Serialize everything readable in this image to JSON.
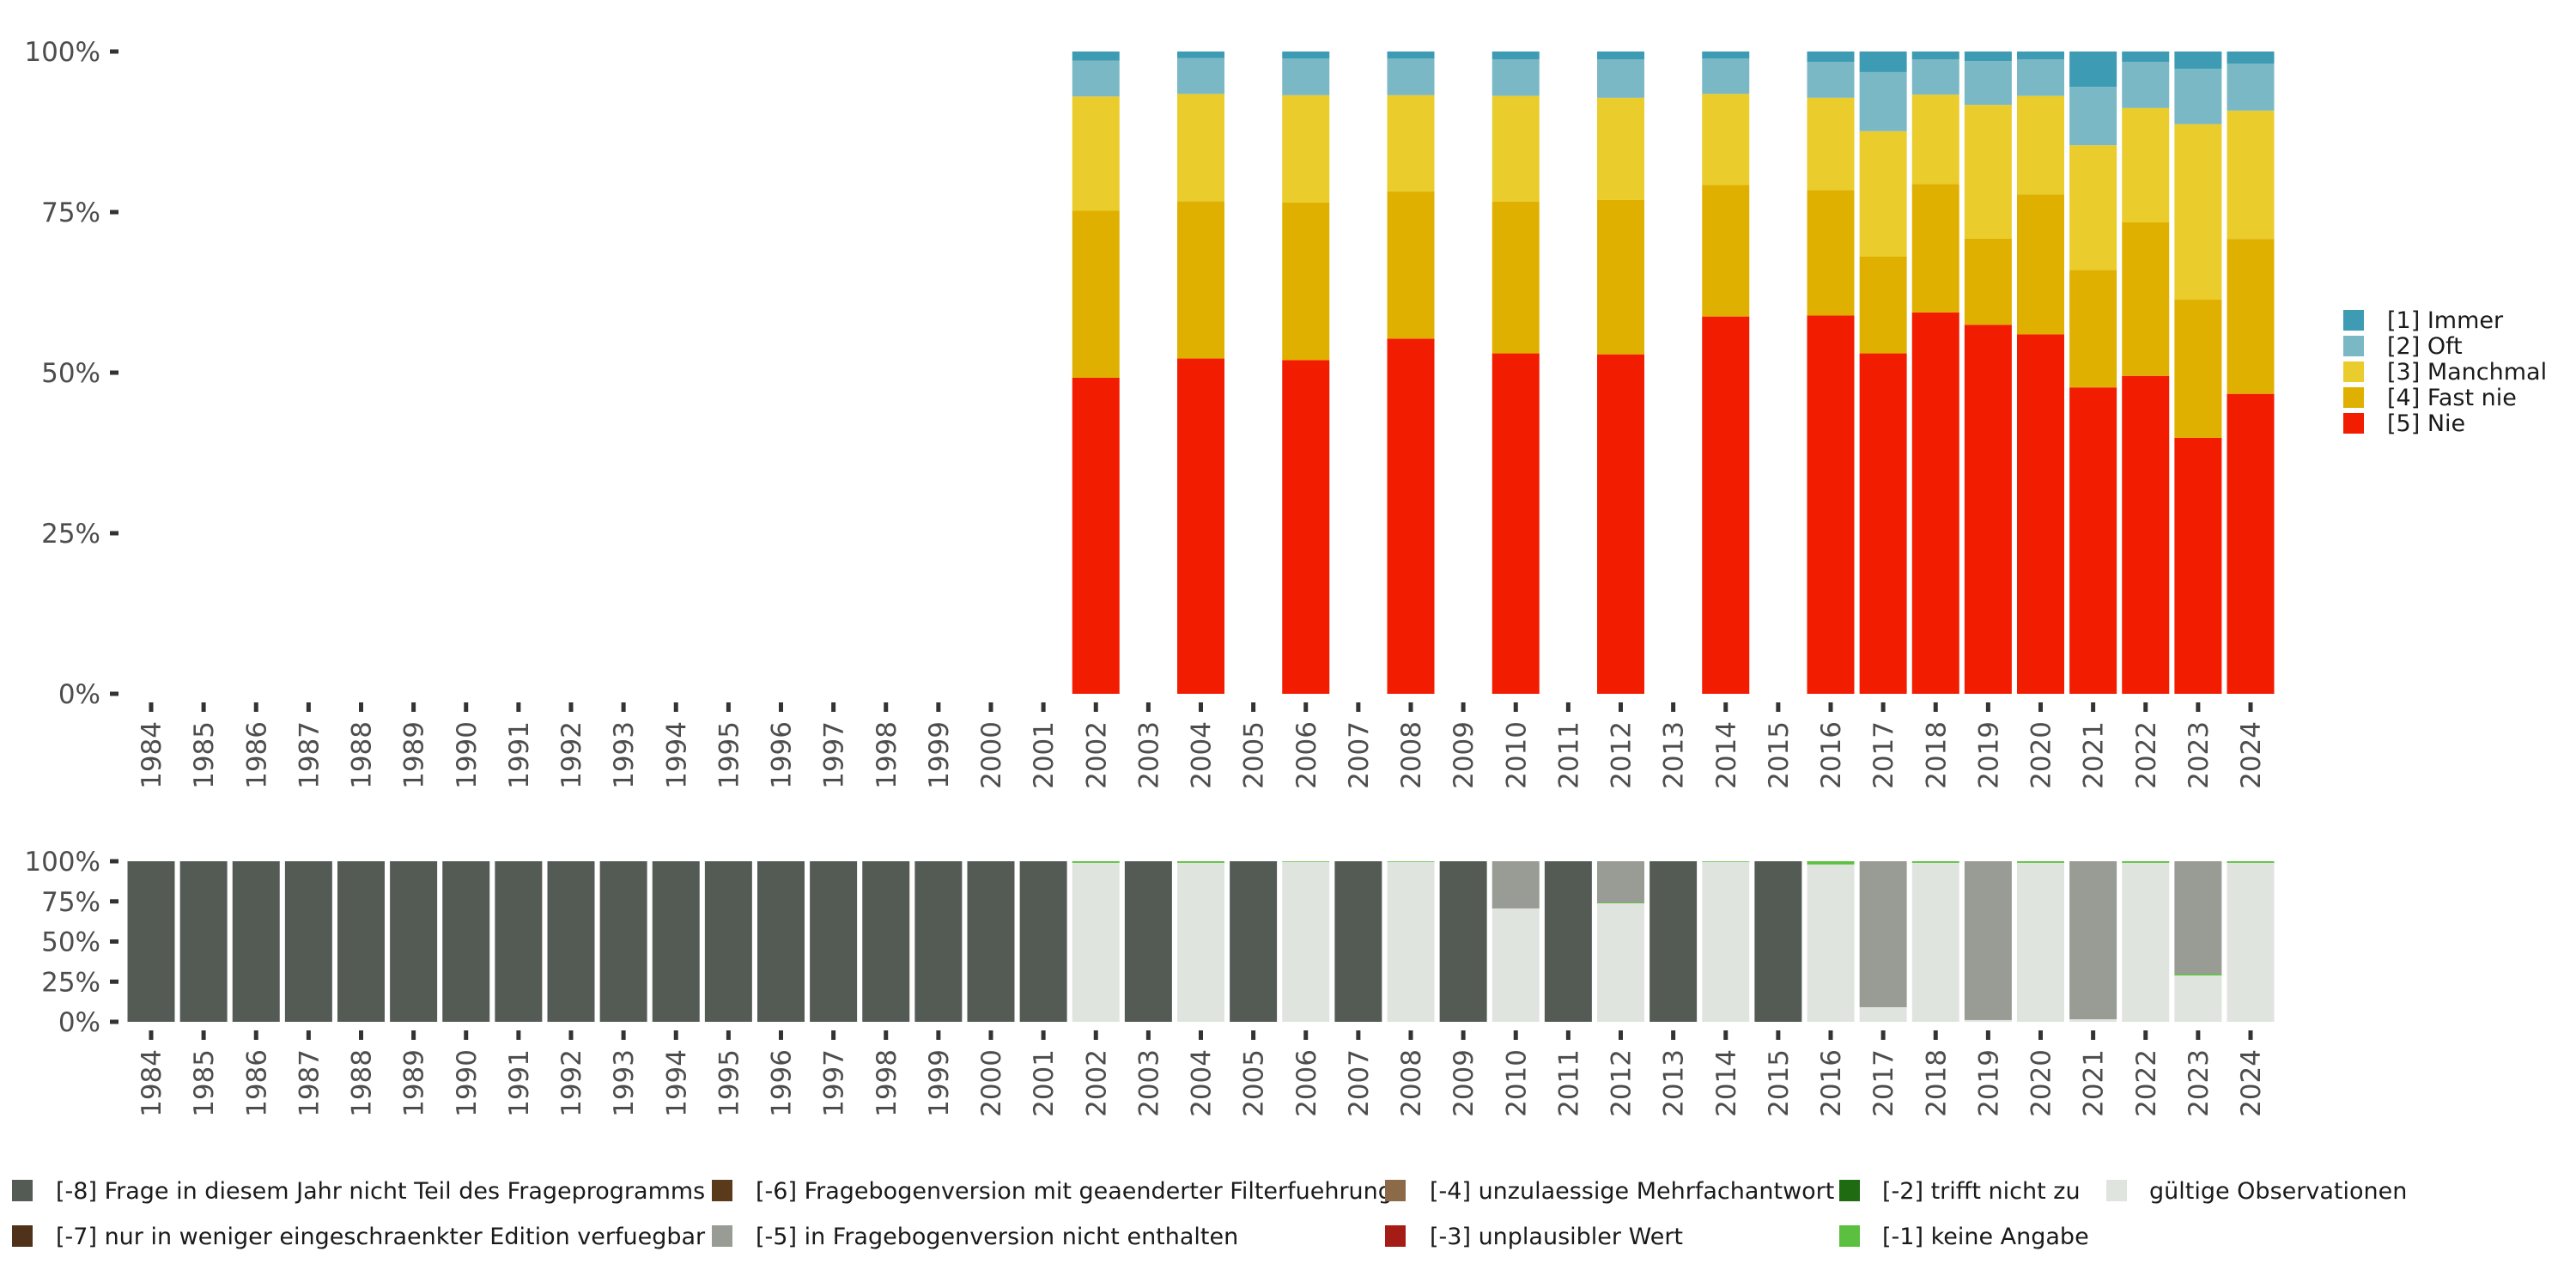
{
  "chart_data": [
    {
      "type": "bar",
      "stacked": true,
      "normalized": true,
      "title": "",
      "xlabel": "",
      "ylabel": "",
      "ylim": [
        0,
        1
      ],
      "yticks": [
        "0%",
        "25%",
        "50%",
        "75%",
        "100%"
      ],
      "grid": false,
      "legend_position": "right",
      "categories": [
        "1984",
        "1985",
        "1986",
        "1987",
        "1988",
        "1989",
        "1990",
        "1991",
        "1992",
        "1993",
        "1994",
        "1995",
        "1996",
        "1997",
        "1998",
        "1999",
        "2000",
        "2001",
        "2002",
        "2003",
        "2004",
        "2005",
        "2006",
        "2007",
        "2008",
        "2009",
        "2010",
        "2011",
        "2012",
        "2013",
        "2014",
        "2015",
        "2016",
        "2017",
        "2018",
        "2019",
        "2020",
        "2021",
        "2022",
        "2023",
        "2024"
      ],
      "stack_order_bottom_to_top": [
        "[5] Nie",
        "[4] Fast nie",
        "[3] Manchmal",
        "[2] Oft",
        "[1] Immer"
      ],
      "series": [
        {
          "name": "[1] Immer",
          "color": "#3d9bb3",
          "values": {
            "2002": 1.4,
            "2004": 1.0,
            "2006": 1.1,
            "2008": 1.1,
            "2010": 1.2,
            "2012": 1.2,
            "2014": 1.1,
            "2016": 1.6,
            "2017": 3.2,
            "2018": 1.2,
            "2019": 1.5,
            "2020": 1.2,
            "2021": 5.5,
            "2022": 1.6,
            "2023": 2.7,
            "2024": 1.9
          }
        },
        {
          "name": "[2] Oft",
          "color": "#7ab8c6",
          "values": {
            "2002": 5.6,
            "2004": 5.6,
            "2006": 5.7,
            "2008": 5.7,
            "2010": 5.7,
            "2012": 6.0,
            "2014": 5.5,
            "2016": 5.6,
            "2017": 9.2,
            "2018": 5.5,
            "2019": 6.8,
            "2020": 5.7,
            "2021": 9.1,
            "2022": 7.2,
            "2023": 8.6,
            "2024": 7.3
          }
        },
        {
          "name": "[3] Manchmal",
          "color": "#eacc2c",
          "values": {
            "2002": 17.8,
            "2004": 16.7,
            "2006": 16.7,
            "2008": 15.0,
            "2010": 16.5,
            "2012": 15.9,
            "2014": 14.2,
            "2016": 14.4,
            "2017": 19.5,
            "2018": 13.9,
            "2019": 20.8,
            "2020": 15.3,
            "2021": 19.4,
            "2022": 17.8,
            "2023": 27.3,
            "2024": 20.0
          }
        },
        {
          "name": "[4] Fast nie",
          "color": "#e0b000",
          "values": {
            "2002": 26.0,
            "2004": 24.5,
            "2006": 24.5,
            "2008": 22.9,
            "2010": 23.6,
            "2012": 24.0,
            "2014": 20.5,
            "2016": 19.5,
            "2017": 15.1,
            "2018": 20.0,
            "2019": 13.4,
            "2020": 21.8,
            "2021": 18.3,
            "2022": 23.9,
            "2023": 21.5,
            "2024": 24.1
          }
        },
        {
          "name": "[5] Nie",
          "color": "#f21c00",
          "values": {
            "2002": 49.2,
            "2004": 52.2,
            "2006": 51.9,
            "2008": 55.3,
            "2010": 53.0,
            "2012": 52.8,
            "2014": 58.8,
            "2016": 58.9,
            "2017": 53.0,
            "2018": 59.3,
            "2019": 57.4,
            "2020": 55.9,
            "2021": 47.7,
            "2022": 49.5,
            "2023": 39.8,
            "2024": 46.7
          }
        }
      ]
    },
    {
      "type": "bar",
      "stacked": true,
      "normalized": true,
      "title": "",
      "xlabel": "",
      "ylabel": "",
      "ylim": [
        0,
        1
      ],
      "yticks": [
        "0%",
        "25%",
        "50%",
        "75%",
        "100%"
      ],
      "grid": false,
      "legend_position": "bottom",
      "categories": [
        "1984",
        "1985",
        "1986",
        "1987",
        "1988",
        "1989",
        "1990",
        "1991",
        "1992",
        "1993",
        "1994",
        "1995",
        "1996",
        "1997",
        "1998",
        "1999",
        "2000",
        "2001",
        "2002",
        "2003",
        "2004",
        "2005",
        "2006",
        "2007",
        "2008",
        "2009",
        "2010",
        "2011",
        "2012",
        "2013",
        "2014",
        "2015",
        "2016",
        "2017",
        "2018",
        "2019",
        "2020",
        "2021",
        "2022",
        "2023",
        "2024"
      ],
      "stack_order_bottom_to_top": [
        "gültige Observationen",
        "[-1] keine Angabe",
        "[-2] trifft nicht zu",
        "[-3] unplausibler Wert",
        "[-4] unzulaessige Mehrfachantwort",
        "[-5] in Fragebogenversion nicht enthalten",
        "[-6] Fragebogenversion mit geaenderter Filterfuehrung",
        "[-7] nur in weniger eingeschraenkter Edition verfuegbar",
        "[-8] Frage in diesem Jahr nicht Teil des Frageprogramms"
      ],
      "series": [
        {
          "name": "[-8] Frage in diesem Jahr nicht Teil des Frageprogramms",
          "color": "#545b55",
          "values": {
            "1984": 100,
            "1985": 100,
            "1986": 100,
            "1987": 100,
            "1988": 100,
            "1989": 100,
            "1990": 100,
            "1991": 100,
            "1992": 100,
            "1993": 100,
            "1994": 100,
            "1995": 100,
            "1996": 100,
            "1997": 100,
            "1998": 100,
            "1999": 100,
            "2000": 100,
            "2001": 100,
            "2003": 100,
            "2005": 100,
            "2007": 100,
            "2009": 100,
            "2011": 100,
            "2013": 100,
            "2015": 100
          }
        },
        {
          "name": "[-7] nur in weniger eingeschraenkter Edition verfuegbar",
          "color": "#4f3219",
          "values": {}
        },
        {
          "name": "[-6] Fragebogenversion mit geaenderter Filterfuehrung",
          "color": "#5a3a1a",
          "values": {}
        },
        {
          "name": "[-5] in Fragebogenversion nicht enthalten",
          "color": "#989c94",
          "values": {
            "2010": 29.4,
            "2012": 25.7,
            "2017": 90.9,
            "2019": 98.9,
            "2021": 98.4,
            "2023": 70.1
          }
        },
        {
          "name": "[-4] unzulaessige Mehrfachantwort",
          "color": "#8c6a48",
          "values": {}
        },
        {
          "name": "[-3] unplausibler Wert",
          "color": "#a51c16",
          "values": {}
        },
        {
          "name": "[-2] trifft nicht zu",
          "color": "#1e6b12",
          "values": {}
        },
        {
          "name": "[-1] keine Angabe",
          "color": "#5bbf3f",
          "values": {
            "2002": 1.0,
            "2004": 1.0,
            "2006": 0.4,
            "2008": 0.4,
            "2012": 0.5,
            "2014": 0.4,
            "2016": 2.0,
            "2018": 1.0,
            "2020": 1.0,
            "2022": 1.0,
            "2023": 1.0,
            "2024": 1.0
          }
        },
        {
          "name": "gültige Observationen",
          "color": "#e0e4df",
          "values": {
            "2002": 99.0,
            "2004": 99.0,
            "2006": 99.6,
            "2008": 99.6,
            "2010": 70.6,
            "2012": 73.8,
            "2014": 99.6,
            "2016": 98.0,
            "2017": 9.1,
            "2018": 99.0,
            "2019": 1.1,
            "2020": 99.0,
            "2021": 1.6,
            "2022": 99.0,
            "2023": 28.9,
            "2024": 99.0
          }
        }
      ]
    }
  ],
  "top_legend": {
    "items": [
      {
        "label": "[1] Immer",
        "color": "#3d9bb3"
      },
      {
        "label": "[2] Oft",
        "color": "#7ab8c6"
      },
      {
        "label": "[3] Manchmal",
        "color": "#eacc2c"
      },
      {
        "label": "[4] Fast nie",
        "color": "#e0b000"
      },
      {
        "label": "[5] Nie",
        "color": "#f21c00"
      }
    ]
  },
  "bottom_legend": {
    "items": [
      {
        "label": "[-8] Frage in diesem Jahr nicht Teil des Frageprogramms",
        "color": "#545b55"
      },
      {
        "label": "[-7] nur in weniger eingeschraenkter Edition verfuegbar",
        "color": "#4f3219"
      },
      {
        "label": "[-6] Fragebogenversion mit geaenderter Filterfuehrung",
        "color": "#5a3a1a"
      },
      {
        "label": "[-5] in Fragebogenversion nicht enthalten",
        "color": "#989c94"
      },
      {
        "label": "[-4] unzulaessige Mehrfachantwort",
        "color": "#8c6a48"
      },
      {
        "label": "[-3] unplausibler Wert",
        "color": "#a51c16"
      },
      {
        "label": "[-2] trifft nicht zu",
        "color": "#1e6b12"
      },
      {
        "label": "[-1] keine Angabe",
        "color": "#5bbf3f"
      },
      {
        "label": "gültige Observationen",
        "color": "#e0e4df"
      }
    ]
  }
}
